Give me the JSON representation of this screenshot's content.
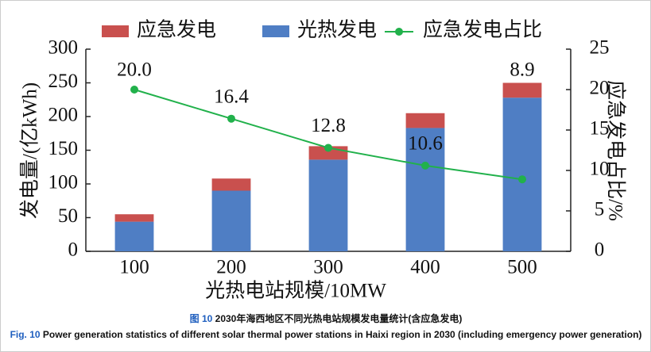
{
  "chart_data": {
    "type": "bar",
    "categories": [
      "100",
      "200",
      "300",
      "400",
      "500"
    ],
    "x_label": "光热电站规模/10MW",
    "y_label": "发电量/(亿kWh)",
    "y2_label": "应急发电占比/%",
    "series": [
      {
        "name": "应急发电",
        "type": "bar",
        "color": "#c9504e",
        "values": [
          11,
          18,
          20,
          22,
          22
        ]
      },
      {
        "name": "光热发电",
        "type": "bar",
        "color": "#4f7ec4",
        "values": [
          44,
          90,
          136,
          183,
          228
        ]
      },
      {
        "name": "应急发电占比",
        "type": "line",
        "axis": "y2",
        "color": "#21b14b",
        "values": [
          20.0,
          16.4,
          12.8,
          10.6,
          8.9
        ],
        "value_labels": [
          "20.0",
          "16.4",
          "12.8",
          "10.6",
          "8.9"
        ]
      }
    ],
    "ylim": [
      0,
      300
    ],
    "yticks": [
      0,
      50,
      100,
      150,
      200,
      250,
      300
    ],
    "y2lim": [
      0,
      25
    ],
    "y2ticks": [
      0,
      5,
      10,
      15,
      20,
      25
    ],
    "legend": "top"
  },
  "caption": {
    "cn_label": "图 10",
    "cn_text": "2030年海西地区不同光热电站规模发电量统计(含应急发电)",
    "en_label": "Fig. 10",
    "en_text": "Power generation statistics of different solar thermal power stations in Haixi region in 2030 (including emergency power generation)"
  }
}
